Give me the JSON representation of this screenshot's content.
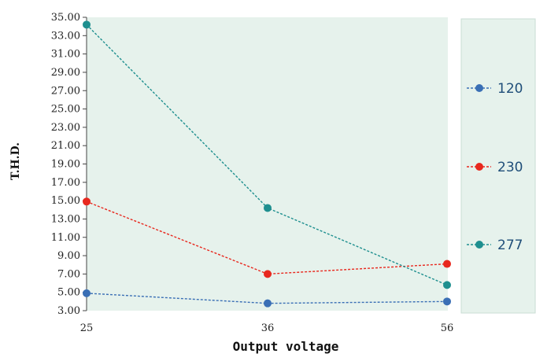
{
  "chart_data": {
    "type": "line",
    "title": "",
    "xlabel": "Output voltage",
    "ylabel": "T.H.D.",
    "categories": [
      "25",
      "36",
      "56"
    ],
    "ylim": [
      3,
      35
    ],
    "yticks": [
      "3.00",
      "5.00",
      "7.00",
      "9.00",
      "11.00",
      "13.00",
      "15.00",
      "17.00",
      "19.00",
      "21.00",
      "23.00",
      "25.00",
      "27.00",
      "29.00",
      "31.00",
      "33.00",
      "35.00"
    ],
    "grid": false,
    "legend_position": "right",
    "series": [
      {
        "name": "120",
        "values": [
          4.9,
          3.8,
          4.0
        ],
        "color": "#3a6fb5"
      },
      {
        "name": "230",
        "values": [
          14.9,
          7.0,
          8.1
        ],
        "color": "#e8281e"
      },
      {
        "name": "277",
        "values": [
          34.2,
          14.2,
          5.8
        ],
        "color": "#1e8f8f"
      }
    ],
    "plot_background": "#e6f2ec"
  }
}
